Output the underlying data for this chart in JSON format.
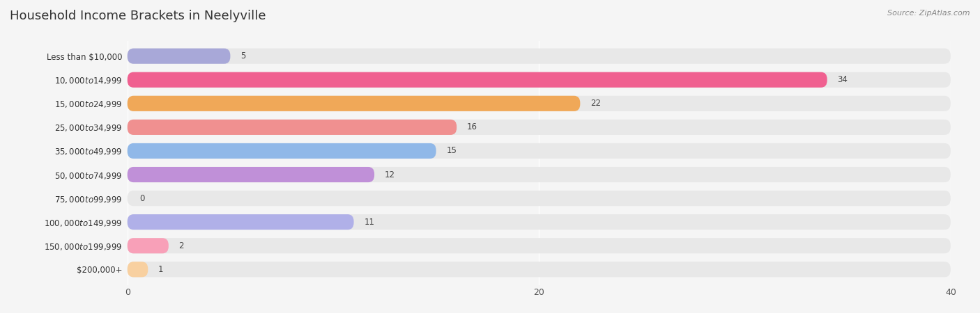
{
  "title": "Household Income Brackets in Neelyville",
  "source": "Source: ZipAtlas.com",
  "categories": [
    "Less than $10,000",
    "$10,000 to $14,999",
    "$15,000 to $24,999",
    "$25,000 to $34,999",
    "$35,000 to $49,999",
    "$50,000 to $74,999",
    "$75,000 to $99,999",
    "$100,000 to $149,999",
    "$150,000 to $199,999",
    "$200,000+"
  ],
  "values": [
    5,
    34,
    22,
    16,
    15,
    12,
    0,
    11,
    2,
    1
  ],
  "bar_colors": [
    "#a8a8d8",
    "#f06090",
    "#f0a858",
    "#f09090",
    "#90b8e8",
    "#c090d8",
    "#70c8c0",
    "#b0b0e8",
    "#f8a0b8",
    "#f8d0a0"
  ],
  "xlim": [
    0,
    40
  ],
  "xticks": [
    0,
    20,
    40
  ],
  "background_color": "#f5f5f5",
  "bar_bg_color": "#e8e8e8",
  "title_fontsize": 13,
  "label_fontsize": 8.5,
  "value_fontsize": 8.5,
  "source_fontsize": 8
}
